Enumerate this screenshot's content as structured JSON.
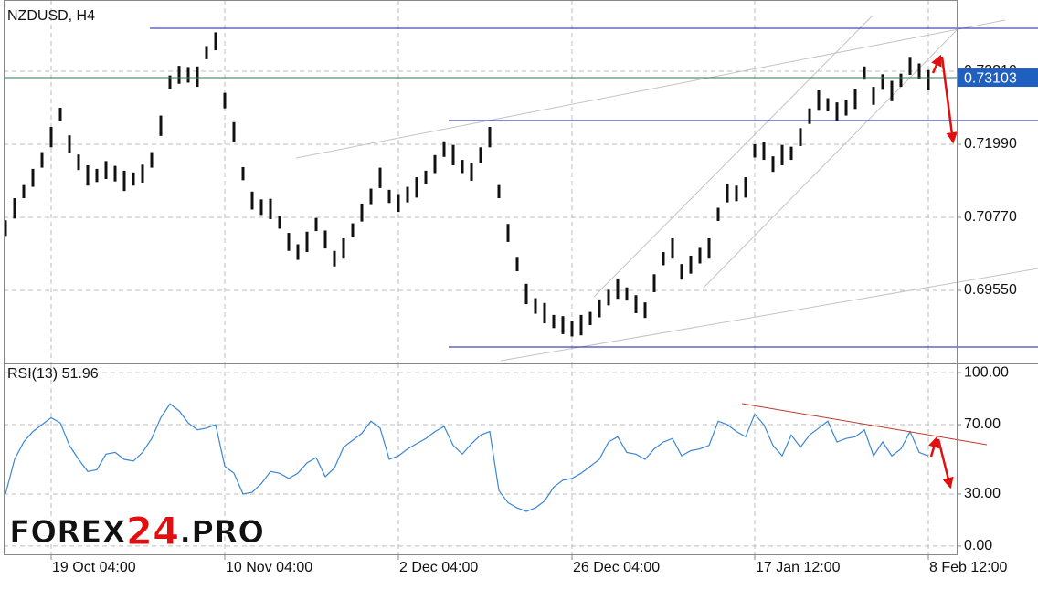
{
  "chart_data": [
    {
      "type": "range",
      "title": "NZDUSD, H4",
      "color": "#111111",
      "categories": [
        null,
        null,
        null,
        null,
        null,
        "19 Oct 04:00",
        null,
        null,
        null,
        null,
        null,
        null,
        null,
        null,
        null,
        null,
        null,
        null,
        null,
        null,
        null,
        null,
        null,
        null,
        "10 Nov 04:00",
        null,
        null,
        null,
        null,
        null,
        null,
        null,
        null,
        null,
        null,
        null,
        null,
        null,
        null,
        null,
        null,
        null,
        null,
        "2 Dec 04:00",
        null,
        null,
        null,
        null,
        null,
        null,
        null,
        null,
        null,
        null,
        null,
        null,
        null,
        null,
        null,
        null,
        null,
        null,
        "26 Dec 04:00",
        null,
        null,
        null,
        null,
        null,
        null,
        null,
        null,
        null,
        null,
        null,
        null,
        null,
        null,
        null,
        null,
        null,
        null,
        null,
        "17 Jan 12:00",
        null,
        null,
        null,
        null,
        null,
        null,
        null,
        null,
        null,
        null,
        null,
        null,
        null,
        null,
        null,
        null,
        null,
        null,
        "8 Feb 12:00"
      ],
      "high": [
        0.7072,
        0.7109,
        0.7131,
        0.7158,
        0.7186,
        0.7228,
        0.726,
        0.7214,
        0.7182,
        0.7164,
        0.7158,
        0.7171,
        0.7163,
        0.7155,
        0.7152,
        0.7165,
        0.7186,
        0.7247,
        0.7314,
        0.733,
        0.7328,
        0.7329,
        0.7363,
        0.7386,
        0.7285,
        0.7236,
        0.7161,
        0.712,
        0.7107,
        0.7108,
        0.708,
        0.7051,
        0.7032,
        0.7053,
        0.7076,
        0.7055,
        0.7021,
        0.7042,
        0.7067,
        0.71,
        0.7125,
        0.716,
        0.7123,
        0.7116,
        0.7128,
        0.7144,
        0.7155,
        0.7181,
        0.7204,
        0.7198,
        0.7173,
        0.7168,
        0.7194,
        0.7228,
        0.7131,
        0.7066,
        0.7011,
        0.6966,
        0.6942,
        0.6934,
        0.6914,
        0.6912,
        0.6904,
        0.6914,
        0.6919,
        0.694,
        0.6956,
        0.6975,
        0.696,
        0.6947,
        0.6935,
        0.6982,
        0.7019,
        0.7042,
        0.6999,
        0.7013,
        0.7026,
        0.7042,
        0.7093,
        0.7132,
        0.713,
        0.7144,
        0.7199,
        0.7203,
        0.7179,
        0.7198,
        0.7195,
        0.7226,
        0.7259,
        0.7289,
        0.7276,
        0.7269,
        0.7273,
        0.7292,
        0.7329,
        0.7295,
        0.7316,
        0.7305,
        0.7317,
        0.7345,
        0.7334,
        0.7323
      ],
      "low": [
        0.7046,
        0.7075,
        0.7109,
        0.7128,
        0.716,
        0.7194,
        0.7238,
        0.7184,
        0.7156,
        0.713,
        0.7136,
        0.7141,
        0.7137,
        0.7121,
        0.713,
        0.7135,
        0.716,
        0.7213,
        0.7292,
        0.73,
        0.7302,
        0.7295,
        0.7341,
        0.7356,
        0.7259,
        0.7202,
        0.7139,
        0.709,
        0.7081,
        0.7074,
        0.7058,
        0.7021,
        0.7006,
        0.7019,
        0.7054,
        0.7025,
        0.6995,
        0.7008,
        0.7045,
        0.707,
        0.7099,
        0.7126,
        0.7101,
        0.7086,
        0.7102,
        0.711,
        0.7133,
        0.7151,
        0.7178,
        0.7164,
        0.7151,
        0.7138,
        0.7168,
        0.7194,
        0.7109,
        0.7036,
        0.6987,
        0.6932,
        0.6916,
        0.69,
        0.6892,
        0.6882,
        0.6878,
        0.688,
        0.6897,
        0.691,
        0.693,
        0.6941,
        0.6938,
        0.6917,
        0.6909,
        0.6952,
        0.6997,
        0.7008,
        0.6973,
        0.6983,
        0.7,
        0.7008,
        0.7071,
        0.7102,
        0.7104,
        0.711,
        0.7177,
        0.7173,
        0.7153,
        0.7164,
        0.7173,
        0.7196,
        0.7233,
        0.7255,
        0.7254,
        0.7239,
        0.7247,
        0.7258,
        0.7307,
        0.7265,
        0.729,
        0.7271,
        0.7295,
        0.7315,
        0.7308,
        0.7289
      ],
      "ylim": [
        0.6833,
        0.744
      ],
      "yticks": [
        {
          "value": 0.7321,
          "label": "0.73210"
        },
        {
          "value": 0.7199,
          "label": "0.71990"
        },
        {
          "value": 0.7077,
          "label": "0.70770"
        },
        {
          "value": 0.6955,
          "label": "0.69550"
        }
      ],
      "current_price": 0.73103,
      "current_price_color": "#1f5fbf",
      "current_line_color": "#2e7d4f",
      "grid": true
    },
    {
      "type": "line",
      "name": "RSI(13)",
      "color": "#3a86d4",
      "values": [
        30,
        50,
        60,
        66,
        70,
        74,
        71,
        58,
        50,
        43,
        44,
        53,
        54,
        50,
        49,
        54,
        62,
        74,
        82,
        78,
        71,
        67,
        68,
        70,
        46,
        42,
        30,
        31,
        36,
        43,
        42,
        39,
        42,
        48,
        51,
        40,
        45,
        57,
        61,
        65,
        72,
        68,
        50,
        52,
        56,
        59,
        62,
        66,
        69,
        58,
        53,
        59,
        64,
        66,
        32,
        25,
        22,
        20,
        22,
        26,
        34,
        38,
        39,
        42,
        46,
        50,
        60,
        63,
        54,
        53,
        50,
        56,
        60,
        62,
        52,
        55,
        56,
        58,
        72,
        70,
        66,
        63,
        76,
        70,
        58,
        52,
        64,
        57,
        64,
        68,
        72,
        60,
        62,
        63,
        67,
        52,
        60,
        52,
        56,
        66,
        54,
        51.96
      ],
      "ylim": [
        -5.3,
        105.3
      ],
      "yticks": [
        {
          "value": 100,
          "label": "100.00"
        },
        {
          "value": 70,
          "label": "70.00"
        },
        {
          "value": 30,
          "label": "30.00"
        },
        {
          "value": 0,
          "label": "0.00"
        }
      ],
      "grid": true
    }
  ],
  "logo": [
    "FOREX",
    "24",
    ".PRO"
  ]
}
